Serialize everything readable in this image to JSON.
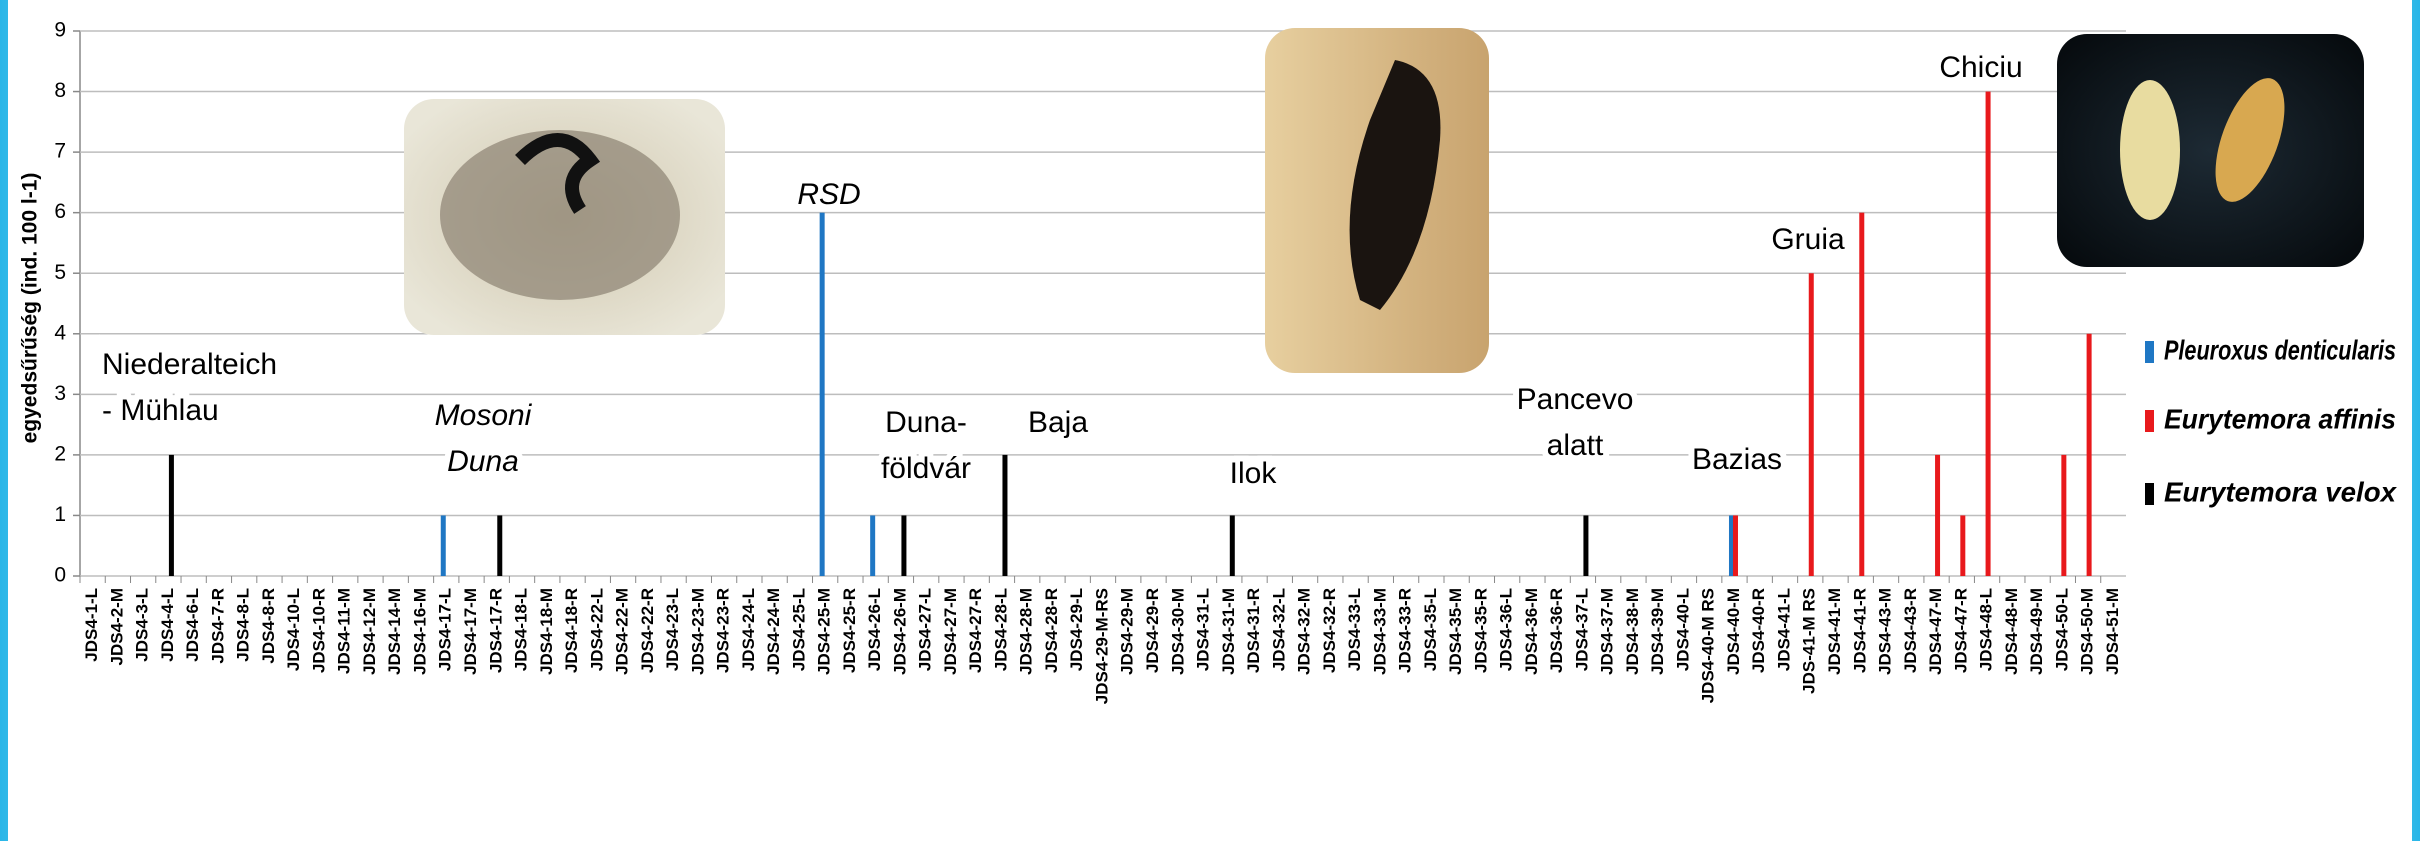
{
  "chart_data": {
    "type": "bar",
    "y_label": "egyedsűrűség (ind. 100 l-1)",
    "categories": [
      "JDS4-1-L",
      "JDS4-2-M",
      "JDS4-3-L",
      "JDS4-4-L",
      "JDS4-6-L",
      "JDS4-7-R",
      "JDS4-8-L",
      "JDS4-8-R",
      "JDS4-10-L",
      "JDS4-10-R",
      "JDS4-11-M",
      "JDS4-12-M",
      "JDS4-14-M",
      "JDS4-16-M",
      "JDS4-17-L",
      "JDS4-17-M",
      "JDS4-17-R",
      "JDS4-18-L",
      "JDS4-18-M",
      "JDS4-18-R",
      "JDS4-22-L",
      "JDS4-22-M",
      "JDS4-22-R",
      "JDS4-23-L",
      "JDS4-23-M",
      "JDS4-23-R",
      "JDS4-24-L",
      "JDS4-24-M",
      "JDS4-25-L",
      "JDS4-25-M",
      "JDS4-25-R",
      "JDS4-26-L",
      "JDS4-26-M",
      "JDS4-27-L",
      "JDS4-27-M",
      "JDS4-27-R",
      "JDS4-28-L",
      "JDS4-28-M",
      "JDS4-28-R",
      "JDS4-29-L",
      "JDS4-29-M-RS",
      "JDS4-29-M",
      "JDS4-29-R",
      "JDS4-30-M",
      "JDS4-31-L",
      "JDS4-31-M",
      "JDS4-31-R",
      "JDS4-32-L",
      "JDS4-32-M",
      "JDS4-32-R",
      "JDS4-33-L",
      "JDS4-33-M",
      "JDS4-33-R",
      "JDS4-35-L",
      "JDS4-35-M",
      "JDS4-35-R",
      "JDS4-36-L",
      "JDS4-36-M",
      "JDS4-36-R",
      "JDS4-37-L",
      "JDS4-37-M",
      "JDS4-38-M",
      "JDS4-39-M",
      "JDS4-40-L",
      "JDS4-40-M RS",
      "JDS4-40-M",
      "JDS4-40-R",
      "JDS4-41-L",
      "JDS-41-M RS",
      "JDS4-41-M",
      "JDS4-41-R",
      "JDS4-43-M",
      "JDS4-43-R",
      "JDS4-47-M",
      "JDS4-47-R",
      "JDS4-48-L",
      "JDS4-48-M",
      "JDS4-49-M",
      "JDS4-50-L",
      "JDS4-50-M",
      "JDS4-51-M"
    ],
    "series": [
      {
        "name": "Pleuroxus denticularis",
        "color": "#1f77c4",
        "values": [
          0,
          0,
          0,
          0,
          0,
          0,
          0,
          0,
          0,
          0,
          0,
          0,
          0,
          0,
          1,
          0,
          0,
          0,
          0,
          0,
          0,
          0,
          0,
          0,
          0,
          0,
          0,
          0,
          0,
          6,
          0,
          1,
          0,
          0,
          0,
          0,
          0,
          0,
          0,
          0,
          0,
          0,
          0,
          0,
          0,
          0,
          0,
          0,
          0,
          0,
          0,
          0,
          0,
          0,
          0,
          0,
          0,
          0,
          0,
          0,
          0,
          0,
          0,
          0,
          0,
          1,
          0,
          0,
          0,
          0,
          0,
          0,
          0,
          0,
          0,
          0,
          0,
          0,
          0,
          0,
          0
        ]
      },
      {
        "name": "Eurytemora affinis",
        "color": "#e8191c",
        "values": [
          0,
          0,
          0,
          0,
          0,
          0,
          0,
          0,
          0,
          0,
          0,
          0,
          0,
          0,
          0,
          0,
          0,
          0,
          0,
          0,
          0,
          0,
          0,
          0,
          0,
          0,
          0,
          0,
          0,
          0,
          0,
          0,
          0,
          0,
          0,
          0,
          0,
          0,
          0,
          0,
          0,
          0,
          0,
          0,
          0,
          0,
          0,
          0,
          0,
          0,
          0,
          0,
          0,
          0,
          0,
          0,
          0,
          0,
          0,
          0,
          0,
          0,
          0,
          0,
          0,
          1,
          0,
          0,
          5,
          0,
          6,
          0,
          0,
          2,
          1,
          8,
          0,
          0,
          2,
          4,
          0
        ]
      },
      {
        "name": "Eurytemora velox",
        "color": "#000000",
        "values": [
          0,
          0,
          0,
          2,
          0,
          0,
          0,
          0,
          0,
          0,
          0,
          0,
          0,
          0,
          0,
          0,
          1,
          0,
          0,
          0,
          0,
          0,
          0,
          0,
          0,
          0,
          0,
          0,
          0,
          0,
          0,
          0,
          1,
          0,
          0,
          0,
          2,
          0,
          0,
          0,
          0,
          0,
          0,
          0,
          0,
          1,
          0,
          0,
          0,
          0,
          0,
          0,
          0,
          0,
          0,
          0,
          0,
          0,
          0,
          1,
          0,
          0,
          0,
          0,
          0,
          0,
          0,
          0,
          0,
          0,
          0,
          0,
          0,
          0,
          0,
          0,
          0,
          0,
          0,
          0,
          0
        ]
      }
    ],
    "ylim": [
      0,
      9
    ],
    "yticks": [
      0,
      1,
      2,
      3,
      4,
      5,
      6,
      7,
      8,
      9
    ],
    "grid": true,
    "legend": "right",
    "annotations": [
      {
        "lines": [
          "Niederalteich",
          "- Mühlau"
        ]
      },
      {
        "lines": [
          "Mosoni",
          "Duna"
        ]
      },
      {
        "lines": [
          "RSD"
        ]
      },
      {
        "lines": [
          "Duna-",
          "földvár"
        ]
      },
      {
        "lines": [
          "Baja"
        ]
      },
      {
        "lines": [
          "Ilok"
        ]
      },
      {
        "lines": [
          "Pancevo",
          "alatt"
        ]
      },
      {
        "lines": [
          "Bazias"
        ]
      },
      {
        "lines": [
          "Gruia"
        ]
      },
      {
        "lines": [
          "Chiciu"
        ]
      }
    ]
  }
}
